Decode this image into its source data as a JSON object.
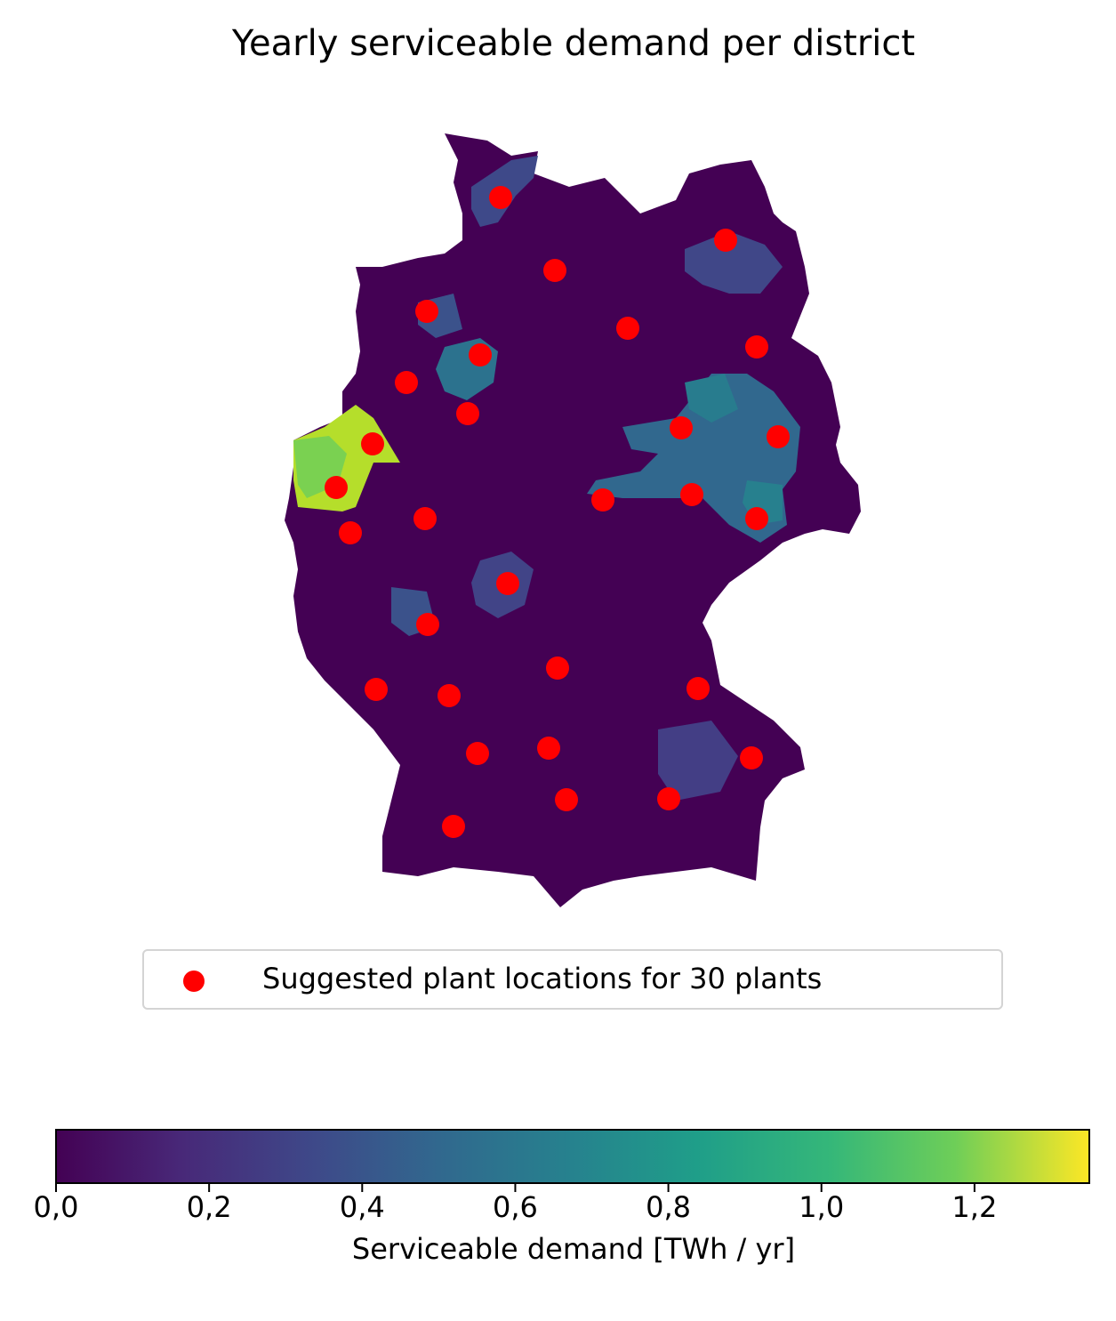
{
  "title": "Yearly serviceable demand per district",
  "legend": {
    "label": "Suggested plant locations for 30 plants",
    "marker_color": "#ff0000"
  },
  "colorbar": {
    "label": "Serviceable demand [TWh / yr]",
    "colormap": "viridis",
    "min": 0.0,
    "max": 1.35,
    "ticks": [
      "0,0",
      "0,2",
      "0,4",
      "0,6",
      "0,8",
      "1,0",
      "1,2"
    ],
    "tick_values": [
      0,
      0.2,
      0.4,
      0.6,
      0.8,
      1.0,
      1.2
    ]
  },
  "map": {
    "region": "Germany districts",
    "background_color": "#440154",
    "plant_count": 30
  }
}
